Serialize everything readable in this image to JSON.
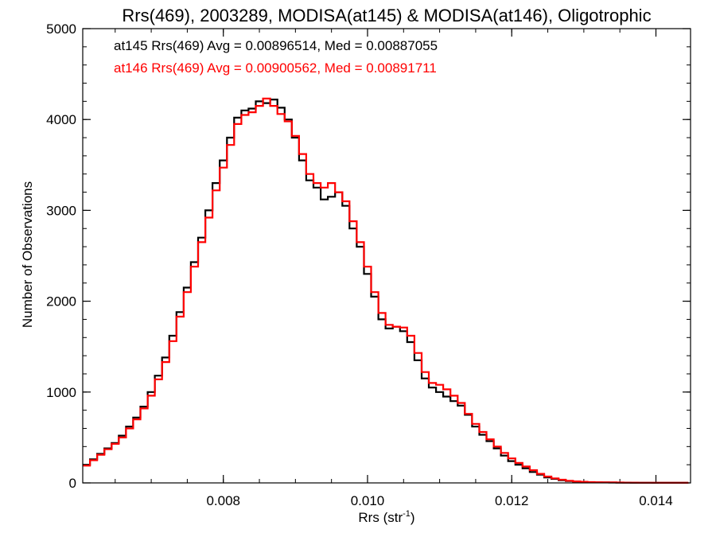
{
  "chart_data": {
    "type": "line",
    "title": "Rrs(469), 2003289, MODISA(at145) & MODISA(at146), Oligotrophic",
    "xlabel": "Rrs (str",
    "xlabel_sup": "-1",
    "xlabel_close": ")",
    "ylabel": "Number of Observations",
    "xlim": [
      0.00605,
      0.01448
    ],
    "ylim": [
      0,
      5000
    ],
    "x_ticks": [
      {
        "value": 0.008,
        "label": "0.008"
      },
      {
        "value": 0.01,
        "label": "0.010"
      },
      {
        "value": 0.012,
        "label": "0.012"
      },
      {
        "value": 0.014,
        "label": "0.014"
      }
    ],
    "x_minor_step": 0.0005,
    "y_ticks": [
      {
        "value": 0,
        "label": "0"
      },
      {
        "value": 1000,
        "label": "1000"
      },
      {
        "value": 2000,
        "label": "2000"
      },
      {
        "value": 3000,
        "label": "3000"
      },
      {
        "value": 4000,
        "label": "4000"
      },
      {
        "value": 5000,
        "label": "5000"
      }
    ],
    "y_minor_step": 200,
    "grid": false,
    "series": [
      {
        "name": "at145",
        "color": "#000000",
        "stat_label": "at145 Rrs(469) Avg = 0.00896514, Med = 0.00887055",
        "step": "histogram",
        "points": [
          [
            0.0061,
            200
          ],
          [
            0.0062,
            260
          ],
          [
            0.0063,
            320
          ],
          [
            0.0064,
            380
          ],
          [
            0.0065,
            440
          ],
          [
            0.0066,
            520
          ],
          [
            0.0067,
            620
          ],
          [
            0.0068,
            720
          ],
          [
            0.0069,
            840
          ],
          [
            0.007,
            1000
          ],
          [
            0.0071,
            1180
          ],
          [
            0.0072,
            1380
          ],
          [
            0.0073,
            1620
          ],
          [
            0.0074,
            1880
          ],
          [
            0.0075,
            2150
          ],
          [
            0.0076,
            2430
          ],
          [
            0.0077,
            2700
          ],
          [
            0.0078,
            3000
          ],
          [
            0.0079,
            3300
          ],
          [
            0.008,
            3550
          ],
          [
            0.0081,
            3800
          ],
          [
            0.0082,
            4020
          ],
          [
            0.0083,
            4100
          ],
          [
            0.0084,
            4120
          ],
          [
            0.0085,
            4200
          ],
          [
            0.0086,
            4180
          ],
          [
            0.0087,
            4220
          ],
          [
            0.0088,
            4130
          ],
          [
            0.0089,
            4000
          ],
          [
            0.009,
            3800
          ],
          [
            0.0091,
            3550
          ],
          [
            0.0092,
            3330
          ],
          [
            0.0093,
            3250
          ],
          [
            0.0094,
            3120
          ],
          [
            0.0095,
            3150
          ],
          [
            0.0096,
            3200
          ],
          [
            0.0097,
            3050
          ],
          [
            0.0098,
            2800
          ],
          [
            0.0099,
            2600
          ],
          [
            0.01,
            2300
          ],
          [
            0.0101,
            2050
          ],
          [
            0.0102,
            1800
          ],
          [
            0.0103,
            1700
          ],
          [
            0.0104,
            1720
          ],
          [
            0.0105,
            1670
          ],
          [
            0.0106,
            1550
          ],
          [
            0.0107,
            1350
          ],
          [
            0.0108,
            1150
          ],
          [
            0.0109,
            1050
          ],
          [
            0.011,
            1000
          ],
          [
            0.0111,
            950
          ],
          [
            0.0112,
            900
          ],
          [
            0.0113,
            850
          ],
          [
            0.0114,
            750
          ],
          [
            0.0115,
            620
          ],
          [
            0.0116,
            530
          ],
          [
            0.0117,
            460
          ],
          [
            0.0118,
            380
          ],
          [
            0.0119,
            300
          ],
          [
            0.012,
            240
          ],
          [
            0.0121,
            200
          ],
          [
            0.0122,
            160
          ],
          [
            0.0123,
            120
          ],
          [
            0.0124,
            90
          ],
          [
            0.0125,
            60
          ],
          [
            0.0126,
            45
          ],
          [
            0.0127,
            30
          ],
          [
            0.0128,
            20
          ],
          [
            0.0129,
            15
          ],
          [
            0.013,
            10
          ],
          [
            0.0131,
            8
          ],
          [
            0.0132,
            6
          ],
          [
            0.0133,
            5
          ],
          [
            0.0134,
            4
          ],
          [
            0.0135,
            3
          ],
          [
            0.0136,
            3
          ],
          [
            0.0137,
            2
          ],
          [
            0.0138,
            2
          ],
          [
            0.0139,
            2
          ],
          [
            0.014,
            1
          ],
          [
            0.0141,
            1
          ],
          [
            0.0142,
            1
          ],
          [
            0.0143,
            1
          ],
          [
            0.0144,
            1
          ]
        ]
      },
      {
        "name": "at146",
        "color": "#ff0000",
        "stat_label": "at146 Rrs(469) Avg = 0.00900562, Med = 0.00891711",
        "step": "histogram",
        "points": [
          [
            0.0061,
            190
          ],
          [
            0.0062,
            250
          ],
          [
            0.0063,
            310
          ],
          [
            0.0064,
            370
          ],
          [
            0.0065,
            430
          ],
          [
            0.0066,
            500
          ],
          [
            0.0067,
            600
          ],
          [
            0.0068,
            700
          ],
          [
            0.0069,
            820
          ],
          [
            0.007,
            960
          ],
          [
            0.0071,
            1140
          ],
          [
            0.0072,
            1330
          ],
          [
            0.0073,
            1560
          ],
          [
            0.0074,
            1830
          ],
          [
            0.0075,
            2100
          ],
          [
            0.0076,
            2380
          ],
          [
            0.0077,
            2650
          ],
          [
            0.0078,
            2920
          ],
          [
            0.0079,
            3220
          ],
          [
            0.008,
            3470
          ],
          [
            0.0081,
            3720
          ],
          [
            0.0082,
            3950
          ],
          [
            0.0083,
            4050
          ],
          [
            0.0084,
            4080
          ],
          [
            0.0085,
            4150
          ],
          [
            0.0086,
            4230
          ],
          [
            0.0087,
            4150
          ],
          [
            0.0088,
            4060
          ],
          [
            0.0089,
            3980
          ],
          [
            0.009,
            3820
          ],
          [
            0.0091,
            3620
          ],
          [
            0.0092,
            3400
          ],
          [
            0.0093,
            3300
          ],
          [
            0.0094,
            3250
          ],
          [
            0.0095,
            3300
          ],
          [
            0.0096,
            3200
          ],
          [
            0.0097,
            3100
          ],
          [
            0.0098,
            2880
          ],
          [
            0.0099,
            2650
          ],
          [
            0.01,
            2380
          ],
          [
            0.0101,
            2100
          ],
          [
            0.0102,
            1870
          ],
          [
            0.0103,
            1740
          ],
          [
            0.0104,
            1720
          ],
          [
            0.0105,
            1710
          ],
          [
            0.0106,
            1620
          ],
          [
            0.0107,
            1430
          ],
          [
            0.0108,
            1220
          ],
          [
            0.0109,
            1100
          ],
          [
            0.011,
            1080
          ],
          [
            0.0111,
            1030
          ],
          [
            0.0112,
            960
          ],
          [
            0.0113,
            880
          ],
          [
            0.0114,
            760
          ],
          [
            0.0115,
            650
          ],
          [
            0.0116,
            560
          ],
          [
            0.0117,
            480
          ],
          [
            0.0118,
            400
          ],
          [
            0.0119,
            330
          ],
          [
            0.012,
            270
          ],
          [
            0.0121,
            220
          ],
          [
            0.0122,
            180
          ],
          [
            0.0123,
            140
          ],
          [
            0.0124,
            100
          ],
          [
            0.0125,
            70
          ],
          [
            0.0126,
            50
          ],
          [
            0.0127,
            35
          ],
          [
            0.0128,
            24
          ],
          [
            0.0129,
            17
          ],
          [
            0.013,
            12
          ],
          [
            0.0131,
            9
          ],
          [
            0.0132,
            7
          ],
          [
            0.0133,
            6
          ],
          [
            0.0134,
            5
          ],
          [
            0.0135,
            4
          ],
          [
            0.0136,
            3
          ],
          [
            0.0137,
            3
          ],
          [
            0.0138,
            2
          ],
          [
            0.0139,
            2
          ],
          [
            0.014,
            2
          ],
          [
            0.0141,
            1
          ],
          [
            0.0142,
            1
          ],
          [
            0.0143,
            1
          ],
          [
            0.0144,
            1
          ]
        ]
      }
    ]
  }
}
